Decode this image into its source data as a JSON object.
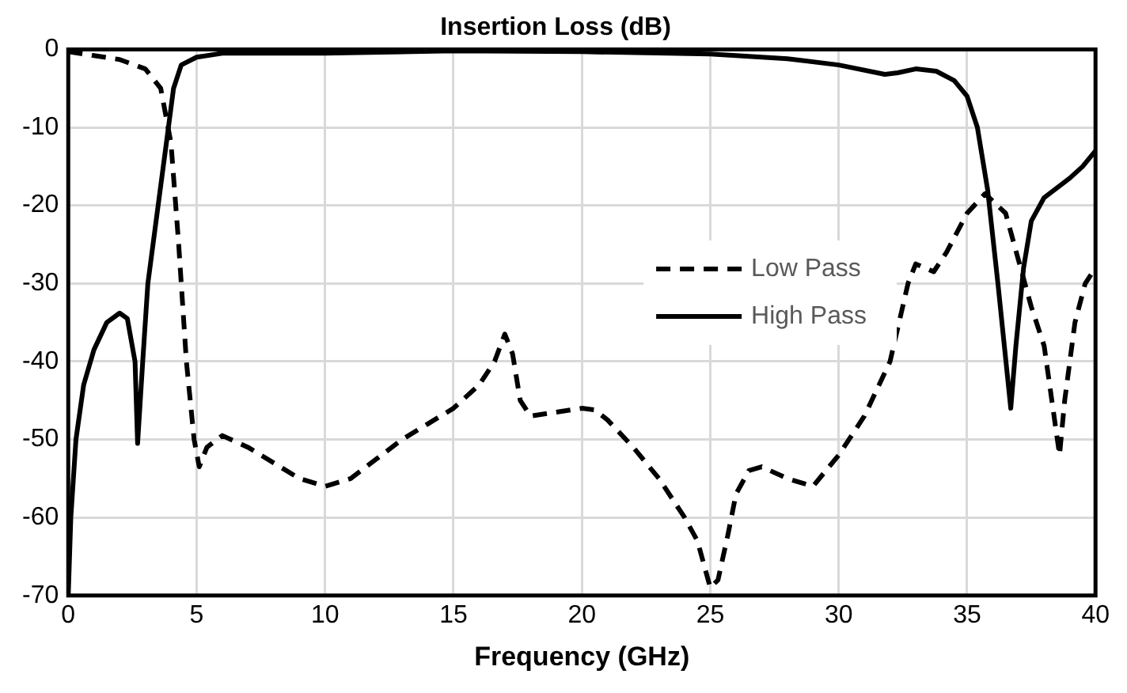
{
  "chart_data": {
    "type": "line",
    "title": "Insertion Loss (dB)",
    "xlabel": "Frequency (GHz)",
    "xlim": [
      0,
      40
    ],
    "xticks": [
      0,
      5,
      10,
      15,
      20,
      25,
      30,
      35,
      40
    ],
    "ylim": [
      -70,
      0
    ],
    "yticks": [
      -70,
      -60,
      -50,
      -40,
      -30,
      -20,
      -10,
      0
    ],
    "grid": true,
    "legend": "right",
    "marker": "none",
    "series": [
      {
        "name": "Low Pass",
        "color": "#000000",
        "line_style": "dashed",
        "x": [
          0,
          1,
          2,
          3,
          3.6,
          4,
          4.3,
          4.6,
          4.9,
          5.1,
          5.4,
          6,
          7,
          8,
          9,
          10,
          11,
          12,
          13,
          14,
          15,
          16,
          16.6,
          17,
          17.3,
          17.6,
          18,
          19,
          20,
          20.5,
          21,
          22,
          23,
          24,
          24.5,
          25,
          25.3,
          25.7,
          26,
          26.5,
          27,
          28,
          28.5,
          29,
          29.5,
          30,
          31,
          32,
          32.7,
          33,
          33.7,
          34.2,
          35,
          35.7,
          36.5,
          37,
          37.5,
          38,
          38.3,
          38.6,
          38.8,
          39.2,
          39.6,
          40
        ],
        "values": [
          -0.3,
          -0.8,
          -1.3,
          -2.5,
          -5,
          -12,
          -25,
          -40,
          -50,
          -53.5,
          -51,
          -49.5,
          -51,
          -53,
          -55,
          -56,
          -55,
          -52.5,
          -50,
          -48,
          -46,
          -43,
          -40,
          -36.5,
          -39,
          -45,
          -47,
          -46.5,
          -46,
          -46.2,
          -47.5,
          -51,
          -55,
          -60,
          -63,
          -69,
          -68,
          -62,
          -57,
          -54,
          -53.5,
          -55,
          -55.5,
          -56,
          -54,
          -52,
          -47,
          -40,
          -30,
          -27.5,
          -28.5,
          -26,
          -21,
          -18.5,
          -21,
          -27,
          -33,
          -38,
          -45,
          -52,
          -45,
          -35,
          -30,
          -28
        ]
      },
      {
        "name": "High Pass",
        "color": "#000000",
        "line_style": "solid",
        "x": [
          0,
          0.1,
          0.3,
          0.6,
          1,
          1.5,
          2,
          2.3,
          2.6,
          2.7,
          2.9,
          3.1,
          3.5,
          3.9,
          4.1,
          4.4,
          5,
          6,
          10,
          15,
          20,
          25,
          28,
          30,
          31.8,
          32.3,
          33,
          33.8,
          34.5,
          35,
          35.4,
          35.8,
          36.2,
          36.7,
          36.9,
          37.2,
          37.5,
          38,
          39,
          39.5,
          40
        ],
        "values": [
          -70,
          -60,
          -50,
          -43,
          -38.5,
          -35,
          -33.8,
          -34.5,
          -40,
          -50.5,
          -40,
          -30,
          -20,
          -10,
          -5,
          -2,
          -1,
          -0.5,
          -0.5,
          -0.2,
          -0.3,
          -0.6,
          -1.2,
          -2,
          -3.2,
          -3,
          -2.5,
          -2.8,
          -4,
          -6,
          -10,
          -18,
          -30,
          -46,
          -38,
          -28,
          -22,
          -19,
          -16.5,
          -15,
          -13
        ]
      }
    ]
  }
}
